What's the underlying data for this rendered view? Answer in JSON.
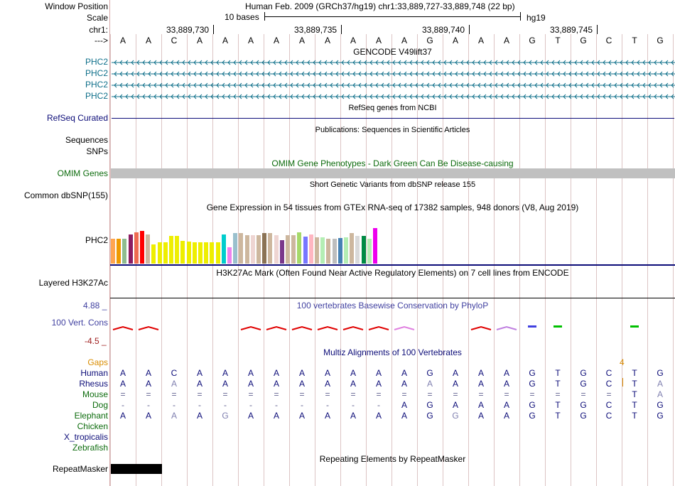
{
  "header": {
    "window_position_label": "Window Position",
    "window_position_value": "Human Feb. 2009 (GRCh37/hg19)   chr1:33,889,727-33,889,748 (22 bp)",
    "scale_label": "Scale",
    "scale_text": "10 bases",
    "assembly": "hg19",
    "chrom_label": "chr1:",
    "arrow_label": "--->",
    "coordinates": [
      "33,889,730",
      "33,889,735",
      "33,889,740",
      "33,889,745"
    ]
  },
  "sequence": [
    "A",
    "A",
    "C",
    "A",
    "A",
    "A",
    "A",
    "A",
    "A",
    "A",
    "A",
    "A",
    "G",
    "A",
    "A",
    "A",
    "G",
    "T",
    "G",
    "C",
    "T",
    "G"
  ],
  "tracks": {
    "gencode": {
      "title": "GENCODE V49lift37",
      "transcripts": [
        "PHC2",
        "PHC2",
        "PHC2",
        "PHC2"
      ],
      "color": "#0e6f8a"
    },
    "refseq": {
      "title": "RefSeq genes from NCBI",
      "label": "RefSeq Curated",
      "color": "#0c0c78"
    },
    "pubs": {
      "title": "Publications: Sequences in Scientific Articles",
      "label1": "Sequences",
      "label2": "SNPs"
    },
    "omim": {
      "title": "OMIM Gene Phenotypes - Dark Green Can Be Disease-causing",
      "label": "OMIM Genes",
      "color": "#0c6b0c"
    },
    "dbsnp": {
      "title": "Short Genetic Variants from dbSNP release 155",
      "label": "Common dbSNP(155)"
    },
    "gtex": {
      "title": "Gene Expression in 54 tissues from GTEx RNA-seq of 17382 samples, 948 donors (V8, Aug 2019)",
      "label": "PHC2",
      "colors": [
        "#ffa54f",
        "#ee9a00",
        "#8fbc8f",
        "#8b1c62",
        "#ee6a50",
        "#ff0000",
        "#cdb79e",
        "#eeee00",
        "#eeee00",
        "#eeee00",
        "#eeee00",
        "#eeee00",
        "#eeee00",
        "#eeee00",
        "#eeee00",
        "#eeee00",
        "#eeee00",
        "#eeee00",
        "#eeee00",
        "#00cdcd",
        "#ee82ee",
        "#9ac0cd",
        "#cdb79e",
        "#cdb79e",
        "#eed5d2",
        "#cdb79e",
        "#8b7355",
        "#cdb79e",
        "#eed5d2",
        "#7a378b",
        "#cdb79e",
        "#cdb79e",
        "#a6d96a",
        "#7777ff",
        "#ffb6c1",
        "#cdb79e",
        "#b4eeb4",
        "#cdb79e",
        "#bebebe",
        "#4682b4",
        "#b4eeb4",
        "#cdb79e",
        "#d9d9d9",
        "#008b45",
        "#b4eeb4",
        "#ee00ee"
      ],
      "levels": [
        0.5,
        0.5,
        0.5,
        0.58,
        0.62,
        0.65,
        0.58,
        0.38,
        0.42,
        0.42,
        0.55,
        0.55,
        0.45,
        0.43,
        0.42,
        0.42,
        0.42,
        0.42,
        0.42,
        0.58,
        0.33,
        0.6,
        0.6,
        0.56,
        0.56,
        0.57,
        0.6,
        0.6,
        0.56,
        0.46,
        0.56,
        0.56,
        0.62,
        0.53,
        0.58,
        0.52,
        0.52,
        0.5,
        0.49,
        0.51,
        0.52,
        0.6,
        0.55,
        0.55,
        0.5,
        0.7
      ]
    },
    "h3k27ac": {
      "title": "H3K27Ac Mark (Often Found Near Active Regulatory Elements) on 7 cell lines from ENCODE",
      "label": "Layered H3K27Ac"
    },
    "phylop": {
      "title": "100 vertebrates Basewise Conservation by PhyloP",
      "label": "100 Vert. Cons",
      "max": "4.88 _",
      "min": "-4.5 _",
      "color": "#4040a0"
    },
    "multiz": {
      "title": "Multiz Alignments of 100 Vertebrates",
      "gaps_label": "Gaps",
      "gaps_mark": "4",
      "species": [
        {
          "name": "Human",
          "seq": [
            "A",
            "A",
            "C",
            "A",
            "A",
            "A",
            "A",
            "A",
            "A",
            "A",
            "A",
            "A",
            "G",
            "A",
            "A",
            "A",
            "G",
            "T",
            "G",
            "C",
            "T",
            "G"
          ]
        },
        {
          "name": "Rhesus",
          "seq": [
            "A",
            "A",
            "A",
            "A",
            "A",
            "A",
            "A",
            "A",
            "A",
            "A",
            "A",
            "A",
            "A",
            "A",
            "A",
            "A",
            "G",
            "T",
            "G",
            "C",
            "T",
            "A"
          ]
        },
        {
          "name": "Mouse",
          "seq": [
            "=",
            "=",
            "=",
            "=",
            "=",
            "=",
            "=",
            "=",
            "=",
            "=",
            "=",
            "=",
            "=",
            "=",
            "=",
            "=",
            "=",
            "=",
            "=",
            "=",
            "T",
            "A"
          ]
        },
        {
          "name": "Dog",
          "seq": [
            "-",
            "-",
            "-",
            "-",
            "-",
            "-",
            "-",
            "-",
            "-",
            "-",
            "-",
            "A",
            "G",
            "A",
            "A",
            "A",
            "G",
            "T",
            "G",
            "C",
            "T",
            "G"
          ]
        },
        {
          "name": "Elephant",
          "seq": [
            "A",
            "A",
            "A",
            "A",
            "G",
            "A",
            "A",
            "A",
            "A",
            "A",
            "A",
            "A",
            "G",
            "G",
            "A",
            "A",
            "G",
            "T",
            "G",
            "C",
            "T",
            "G"
          ]
        },
        {
          "name": "Chicken",
          "seq": []
        },
        {
          "name": "X_tropicalis",
          "seq": []
        },
        {
          "name": "Zebrafish",
          "seq": []
        }
      ]
    },
    "repeatmasker": {
      "title": "Repeating Elements by RepeatMasker",
      "label": "RepeatMasker"
    }
  },
  "colors": {
    "label_blue": "#0c0c78",
    "label_green": "#0c6b0c",
    "gaps_orange": "#d98c00",
    "phylop_red": "#e00000",
    "grid": "#dcc4c4"
  }
}
